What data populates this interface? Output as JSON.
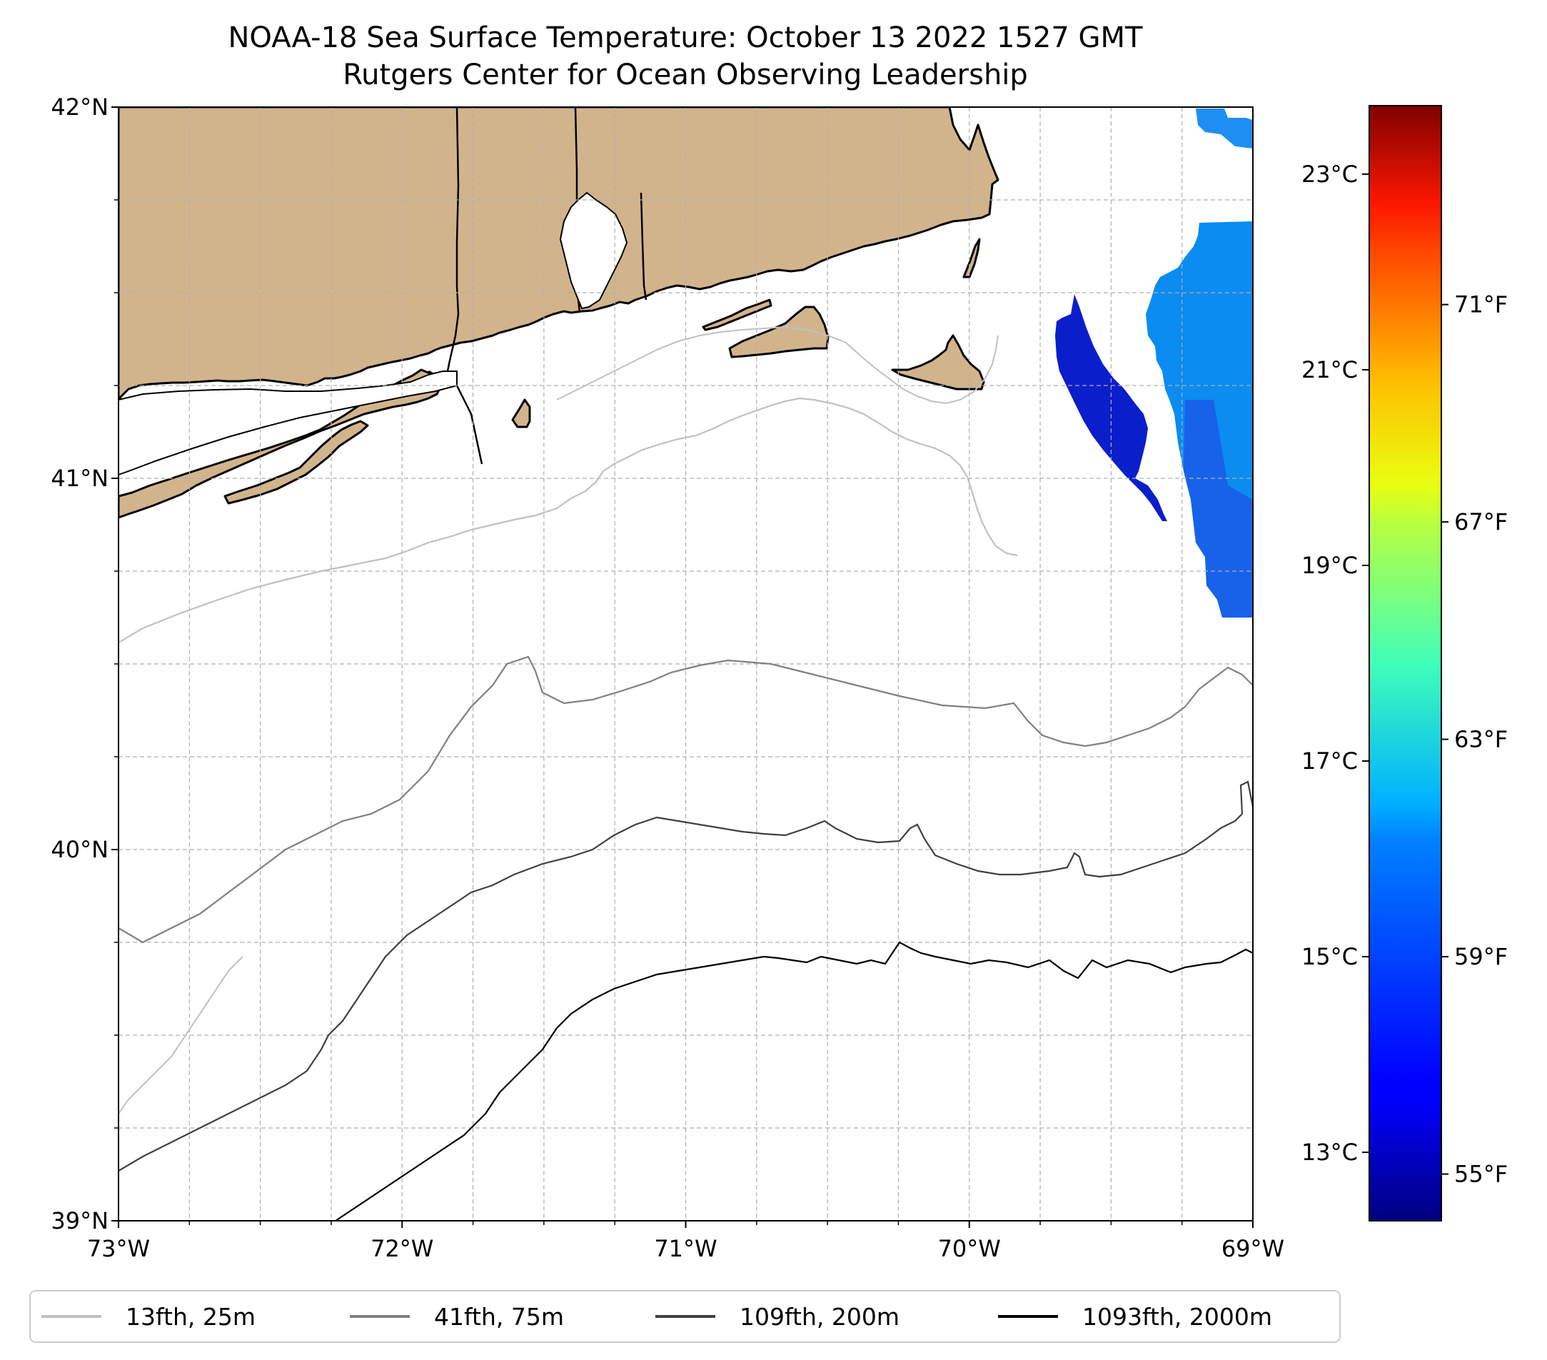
{
  "title": {
    "line1": "NOAA-18 Sea Surface Temperature: October 13 2022 1527 GMT",
    "line2": "Rutgers Center for Ocean Observing Leadership"
  },
  "map": {
    "lon_range": [
      -73,
      -69
    ],
    "lat_range": [
      39,
      42
    ],
    "lon_ticks": [
      {
        "value": -73,
        "label": "73°W"
      },
      {
        "value": -72,
        "label": "72°W"
      },
      {
        "value": -71,
        "label": "71°W"
      },
      {
        "value": -70,
        "label": "70°W"
      },
      {
        "value": -69,
        "label": "69°W"
      }
    ],
    "lat_ticks": [
      {
        "value": 42,
        "label": "42°N"
      },
      {
        "value": 41,
        "label": "41°N"
      },
      {
        "value": 40,
        "label": "40°N"
      },
      {
        "value": 39,
        "label": "39°N"
      }
    ],
    "minor_grid_lon_step": 0.25,
    "minor_grid_lat_step": 0.25,
    "grid": true,
    "land_color": "#d2b48c",
    "coast_color": "#000000"
  },
  "colorbar": {
    "colormap": "jet",
    "c_ticks": [
      {
        "value": 13,
        "label": "13°C"
      },
      {
        "value": 15,
        "label": "15°C"
      },
      {
        "value": 17,
        "label": "17°C"
      },
      {
        "value": 19,
        "label": "19°C"
      },
      {
        "value": 21,
        "label": "21°C"
      },
      {
        "value": 23,
        "label": "23°C"
      }
    ],
    "f_ticks": [
      {
        "value": 55,
        "label": "55°F"
      },
      {
        "value": 59,
        "label": "59°F"
      },
      {
        "value": 63,
        "label": "63°F"
      },
      {
        "value": 67,
        "label": "67°F"
      },
      {
        "value": 71,
        "label": "71°F"
      }
    ],
    "c_range": [
      12.3,
      23.7
    ]
  },
  "legend": {
    "items": [
      {
        "label": "13fth, 25m",
        "color": "#c0c0c0"
      },
      {
        "label": "41fth, 75m",
        "color": "#808080"
      },
      {
        "label": "109fth, 200m",
        "color": "#404040"
      },
      {
        "label": "1093fth, 2000m",
        "color": "#000000"
      }
    ]
  },
  "sst_patches": [
    {
      "name": "east-warm-patch",
      "temp_c": 15.7
    },
    {
      "name": "nantucket-shoals-cold-patch",
      "temp_c": 13.8
    }
  ]
}
